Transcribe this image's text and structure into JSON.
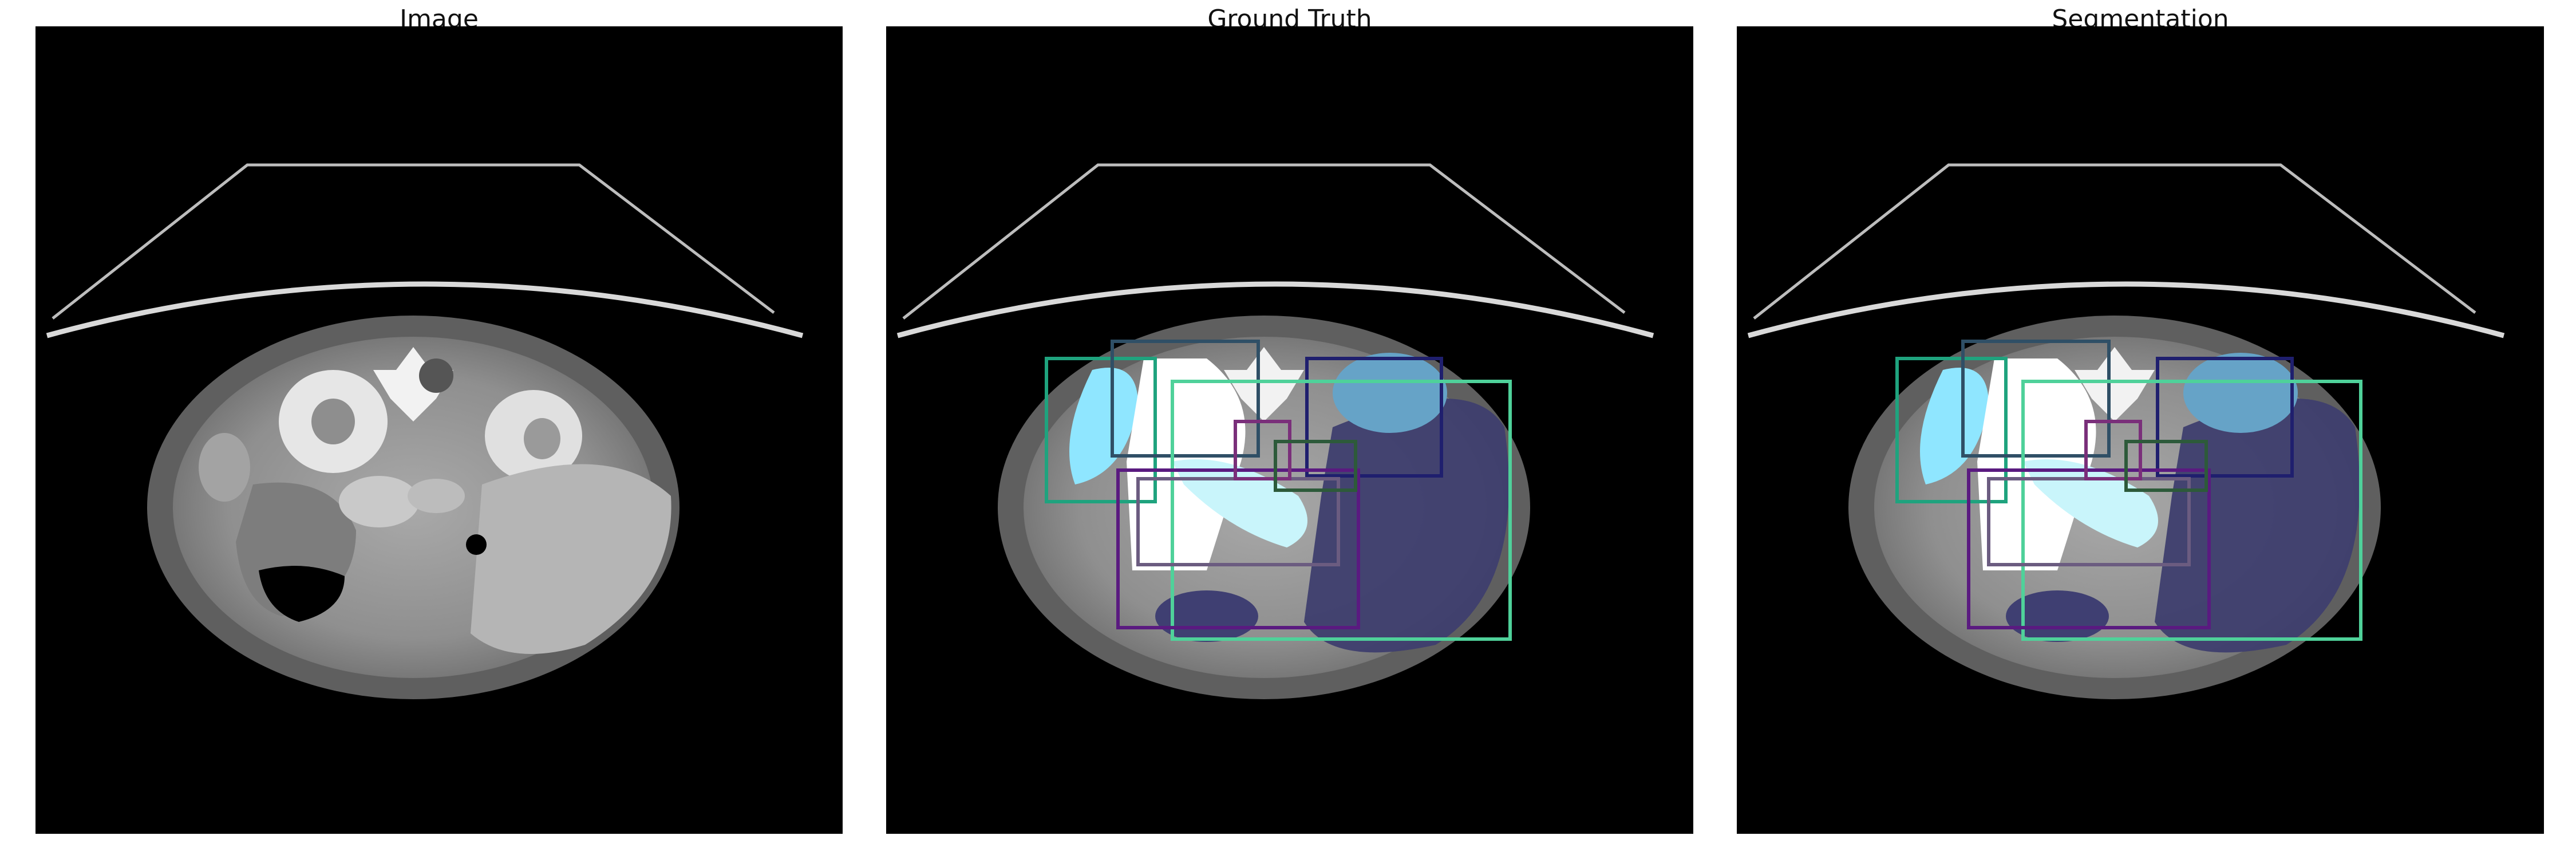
{
  "figure": {
    "panels": [
      {
        "title": "Image"
      },
      {
        "title": "Ground Truth"
      },
      {
        "title": "Segmentation"
      }
    ]
  }
}
